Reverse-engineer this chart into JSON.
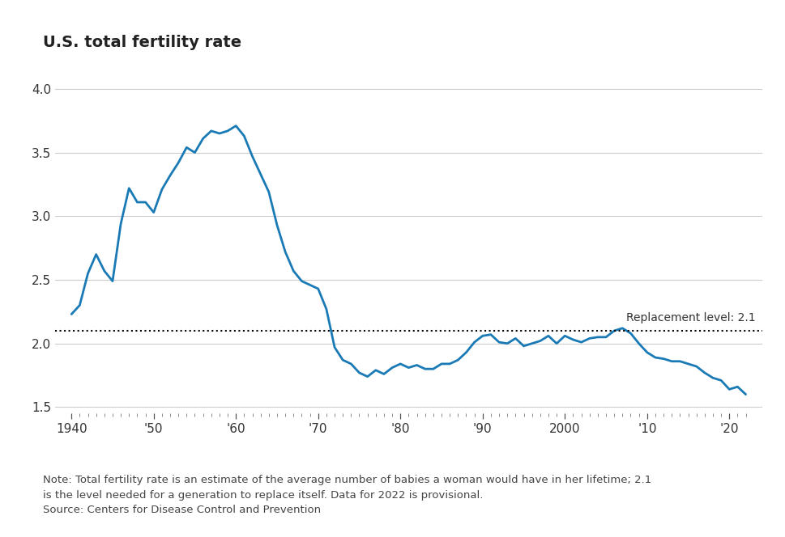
{
  "title": "U.S. total fertility rate",
  "line_color": "#1a7ab5",
  "line_width": 2.0,
  "replacement_level": 2.1,
  "replacement_label": "Replacement level: 2.1",
  "background_color": "#ffffff",
  "grid_color": "#cccccc",
  "ylim": [
    1.45,
    4.15
  ],
  "yticks": [
    1.5,
    2.0,
    2.5,
    3.0,
    3.5,
    4.0
  ],
  "xlim": [
    1938,
    2024
  ],
  "xtick_positions": [
    1940,
    1950,
    1960,
    1970,
    1980,
    1990,
    2000,
    2010,
    2020
  ],
  "xtick_labels": [
    "1940",
    "'50",
    "'60",
    "'70",
    "'80",
    "'90",
    "2000",
    "'10",
    "'20"
  ],
  "note_text": "Note: Total fertility rate is an estimate of the average number of babies a woman would have in her lifetime; 2.1\nis the level needed for a generation to replace itself. Data for 2022 is provisional.\nSource: Centers for Disease Control and Prevention",
  "years": [
    1940,
    1941,
    1942,
    1943,
    1944,
    1945,
    1946,
    1947,
    1948,
    1949,
    1950,
    1951,
    1952,
    1953,
    1954,
    1955,
    1956,
    1957,
    1958,
    1959,
    1960,
    1961,
    1962,
    1963,
    1964,
    1965,
    1966,
    1967,
    1968,
    1969,
    1970,
    1971,
    1972,
    1973,
    1974,
    1975,
    1976,
    1977,
    1978,
    1979,
    1980,
    1981,
    1982,
    1983,
    1984,
    1985,
    1986,
    1987,
    1988,
    1989,
    1990,
    1991,
    1992,
    1993,
    1994,
    1995,
    1996,
    1997,
    1998,
    1999,
    2000,
    2001,
    2002,
    2003,
    2004,
    2005,
    2006,
    2007,
    2008,
    2009,
    2010,
    2011,
    2012,
    2013,
    2014,
    2015,
    2016,
    2017,
    2018,
    2019,
    2020,
    2021,
    2022
  ],
  "values": [
    2.23,
    2.3,
    2.55,
    2.7,
    2.57,
    2.49,
    2.94,
    3.22,
    3.11,
    3.11,
    3.03,
    3.21,
    3.32,
    3.42,
    3.54,
    3.5,
    3.61,
    3.67,
    3.65,
    3.67,
    3.71,
    3.63,
    3.47,
    3.33,
    3.19,
    2.93,
    2.72,
    2.57,
    2.49,
    2.46,
    2.43,
    2.27,
    1.97,
    1.87,
    1.84,
    1.77,
    1.74,
    1.79,
    1.76,
    1.81,
    1.84,
    1.81,
    1.83,
    1.8,
    1.8,
    1.84,
    1.84,
    1.87,
    1.93,
    2.01,
    2.06,
    2.07,
    2.01,
    2.0,
    2.04,
    1.98,
    2.0,
    2.02,
    2.06,
    2.0,
    2.06,
    2.03,
    2.01,
    2.04,
    2.05,
    2.05,
    2.1,
    2.12,
    2.08,
    2.0,
    1.93,
    1.89,
    1.88,
    1.86,
    1.86,
    1.84,
    1.82,
    1.77,
    1.73,
    1.71,
    1.64,
    1.66,
    1.6
  ]
}
